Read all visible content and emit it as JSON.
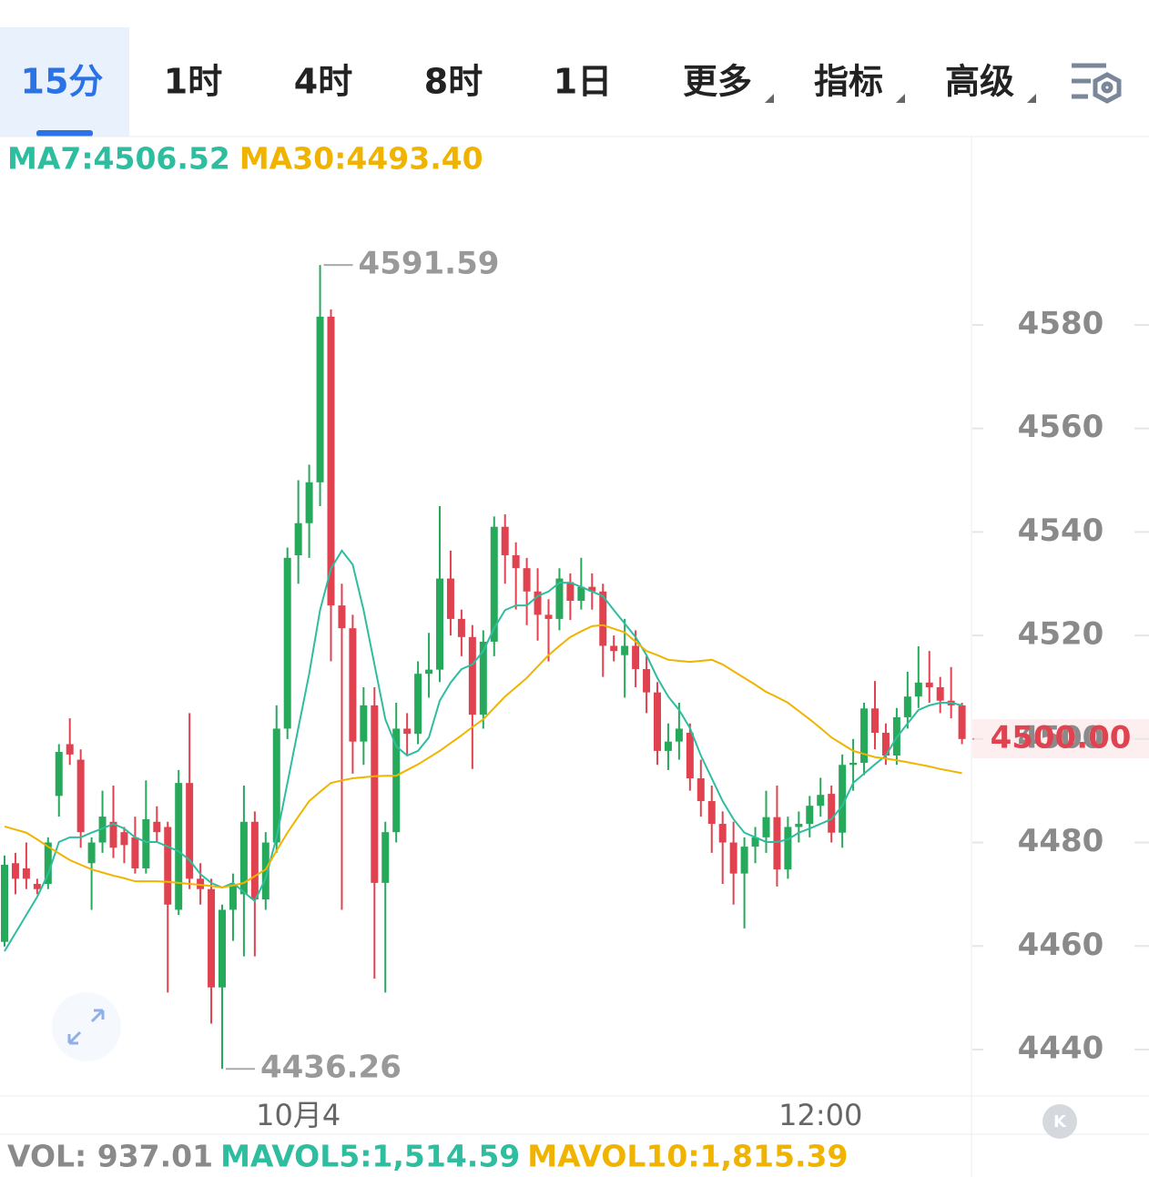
{
  "tabs": [
    "15分",
    "1时",
    "4时",
    "8时",
    "1日",
    "更多",
    "指标",
    "高级"
  ],
  "chart_data": {
    "type": "candlestick",
    "ma_labels": [
      {
        "text": "MA7:4506.52",
        "color": "#2ebd9f"
      },
      {
        "text": "MA30:4493.40",
        "color": "#f0b400"
      }
    ],
    "vol_labels": [
      {
        "text": "VOL: 937.01",
        "color": "#8a8a8a"
      },
      {
        "text": "MAVOL5:1,514.59",
        "color": "#2ebd9f"
      },
      {
        "text": "MAVOL10:1,815.39",
        "color": "#f0b400"
      }
    ],
    "up_color": "#27a95b",
    "down_color": "#e0434f",
    "categories": [
      null,
      null,
      null,
      null,
      null,
      null,
      null,
      null,
      null,
      null,
      null,
      null,
      null,
      null,
      null,
      null,
      null,
      null,
      null,
      null,
      null,
      null,
      null,
      null,
      null,
      null,
      null,
      "10月4",
      null,
      null,
      null,
      null,
      null,
      null,
      null,
      null,
      null,
      null,
      null,
      null,
      null,
      null,
      null,
      null,
      null,
      null,
      null,
      null,
      null,
      null,
      null,
      null,
      null,
      null,
      null,
      null,
      null,
      null,
      null,
      null,
      null,
      null,
      null,
      null,
      null,
      null,
      null,
      null,
      null,
      null,
      null,
      null,
      null,
      null,
      null,
      "12:00",
      null,
      null,
      null,
      null,
      null,
      null,
      null,
      null,
      null,
      null,
      null,
      null,
      null
    ],
    "open": [
      4460.8,
      4476,
      4475,
      4472,
      4472,
      4489,
      4499,
      4496,
      4476,
      4480,
      4484,
      4482,
      4481,
      4475,
      4484,
      4483,
      4467,
      4491.5,
      4473,
      4471,
      4452,
      4467,
      4470,
      4484,
      4469,
      4480,
      4502,
      4535.5,
      4541.7,
      4549.6,
      4581.6,
      4525.8,
      4521.4,
      4499.5,
      4506.5,
      4472.2,
      4482,
      4502,
      4501,
      4512.6,
      4513.4,
      4531,
      4523.2,
      4519.7,
      4504.7,
      4518.8,
      4541,
      4535.5,
      4533,
      4528.5,
      4524,
      4523.2,
      4530.3,
      4526.7,
      4529.4,
      4528.5,
      4518,
      4516.2,
      4518,
      4513.5,
      4509,
      4497.7,
      4499.5,
      4501.2,
      4492.4,
      4488,
      4483.6,
      4480,
      4474,
      4479.2,
      4481,
      4484.9,
      4474.8,
      4483,
      4483.6,
      4487.1,
      4489.4,
      4481.9,
      4495,
      4495.4,
      4505.9,
      4501.2,
      4496.8,
      4504.2,
      4508.2,
      4510.9,
      4510,
      4507.4,
      4506.5
    ],
    "high": [
      4477.5,
      4478,
      4480,
      4473,
      4481,
      4499,
      4504,
      4498,
      4481,
      4490,
      4491,
      4483,
      4485,
      4492,
      4487,
      4484,
      4494,
      4505,
      4476,
      4473,
      4468,
      4474,
      4491,
      4486,
      4482,
      4506.5,
      4537,
      4550,
      4553,
      4591.59,
      4583,
      4530,
      4524,
      4510,
      4510,
      4484,
      4507,
      4505,
      4515,
      4520.5,
      4545,
      4536.4,
      4525,
      4522,
      4521,
      4543,
      4543.4,
      4538,
      4535,
      4533,
      4527,
      4533,
      4532,
      4535,
      4532,
      4530,
      4520,
      4523.2,
      4521,
      4516,
      4511,
      4503,
      4507,
      4503,
      4496,
      4491,
      4486,
      4484,
      4481,
      4483,
      4490,
      4491,
      4485,
      4486,
      4489,
      4492.5,
      4491,
      4497,
      4500,
      4507,
      4511.2,
      4503,
      4506,
      4513,
      4517.9,
      4517,
      4512,
      4513.9,
      4507
    ],
    "low": [
      4459.9,
      4470,
      4471,
      4470,
      4471,
      4485,
      4495,
      4479,
      4467,
      4478,
      4477,
      4476,
      4474,
      4474,
      4480,
      4451,
      4466,
      4471,
      4468,
      4445,
      4436.26,
      4461,
      4458,
      4458,
      4467,
      4478,
      4500,
      4530,
      4535,
      4545,
      4515,
      4467,
      4493.3,
      4495,
      4453.7,
      4451,
      4480,
      4497,
      4499,
      4508,
      4511,
      4520,
      4516,
      4494.2,
      4502,
      4516,
      4530,
      4525,
      4522,
      4519,
      4515,
      4521,
      4523,
      4525,
      4525,
      4512,
      4515,
      4508,
      4510,
      4505,
      4495,
      4494,
      4496,
      4490,
      4485,
      4478,
      4472,
      4468,
      4463.4,
      4476,
      4478,
      4471.5,
      4473,
      4480,
      4481,
      4485,
      4480,
      4479,
      4490,
      4493,
      4498,
      4495,
      4495,
      4502,
      4506,
      4507,
      4505,
      4504,
      4499
    ],
    "close": [
      4475.7,
      4473,
      4473,
      4471,
      4480,
      4497.5,
      4497,
      4482,
      4480,
      4485,
      4479,
      4479.5,
      4475,
      4484.5,
      4482,
      4468,
      4491.5,
      4473,
      4471,
      4452,
      4467,
      4472,
      4484,
      4469,
      4480,
      4502,
      4535,
      4541.7,
      4549.6,
      4581.6,
      4525.8,
      4521.4,
      4499.5,
      4506.5,
      4472.2,
      4482,
      4502,
      4501,
      4512.6,
      4513.4,
      4531,
      4523.2,
      4519.7,
      4504.7,
      4518.8,
      4541,
      4535.5,
      4533,
      4528.5,
      4524,
      4523.2,
      4531,
      4526.7,
      4529.4,
      4528.5,
      4518,
      4517,
      4518,
      4513.5,
      4509,
      4497.7,
      4499.5,
      4502,
      4492.4,
      4488,
      4483.6,
      4480,
      4474,
      4479.2,
      4481,
      4484.9,
      4474.8,
      4483,
      4483.6,
      4487.1,
      4489.2,
      4481.9,
      4495,
      4495.4,
      4505.9,
      4501.2,
      4496.8,
      4504.2,
      4508.2,
      4510.9,
      4510,
      4507.4,
      4506.5,
      4500
    ],
    "lines": [
      {
        "color": "#2ebd9f",
        "values": [
          4459.0,
          4462.5,
          4466.0,
          4469.5,
          4473.9,
          4480.1,
          4481.0,
          4481.0,
          4481.9,
          4482.7,
          4483.6,
          4482.7,
          4481.0,
          4480.1,
          4480.1,
          4479.2,
          4478.3,
          4476.6,
          4473.9,
          4472.2,
          4471.3,
          4472.2,
          4470.4,
          4468.7,
          4473.1,
          4481.0,
          4491.5,
          4502.1,
          4512.6,
          4524.9,
          4532.9,
          4536.4,
          4533.7,
          4524.9,
          4514.4,
          4503.8,
          4498.6,
          4496.8,
          4497.7,
          4500.3,
          4507.4,
          4510.9,
          4513.5,
          4514.4,
          4517.0,
          4521.4,
          4524.9,
          4525.8,
          4525.8,
          4527.6,
          4528.5,
          4530.2,
          4530.2,
          4529.4,
          4528.5,
          4527.6,
          4524.9,
          4522.3,
          4519.7,
          4516.2,
          4511.8,
          4508.2,
          4505.6,
          4502.1,
          4496.8,
          4492.4,
          4488.0,
          4484.5,
          4481.9,
          4481.0,
          4480.1,
          4480.1,
          4480.6,
          4481.9,
          4482.7,
          4483.6,
          4484.5,
          4487.1,
          4491.5,
          4493.3,
          4495.1,
          4496.8,
          4500.3,
          4503.0,
          4505.6,
          4506.5,
          4507.0,
          4507.0,
          4506.5
        ]
      },
      {
        "color": "#f0b400",
        "values": [
          4483.1,
          4482.5,
          4481.9,
          4480.6,
          4479.2,
          4477.9,
          4476.6,
          4475.7,
          4474.8,
          4474.2,
          4473.6,
          4473.1,
          4472.5,
          4472.5,
          4472.5,
          4472.4,
          4472.2,
          4472.0,
          4471.8,
          4471.6,
          4471.3,
          4471.7,
          4472.2,
          4473.5,
          4474.8,
          4478.4,
          4481.9,
          4485.0,
          4488.0,
          4489.8,
          4491.5,
          4492.0,
          4492.4,
          4492.6,
          4492.8,
          4492.9,
          4492.9,
          4494.0,
          4495.1,
          4496.4,
          4497.7,
          4499.2,
          4500.7,
          4502.3,
          4503.8,
          4506.0,
          4508.2,
          4510.0,
          4511.8,
          4514.0,
          4516.2,
          4518.0,
          4519.7,
          4520.8,
          4521.8,
          4522.0,
          4521.3,
          4520.6,
          4518.8,
          4517.0,
          4516.2,
          4515.3,
          4515.1,
          4514.9,
          4515.1,
          4515.3,
          4514.4,
          4513.1,
          4511.8,
          4510.5,
          4509.1,
          4508.1,
          4507.0,
          4505.4,
          4503.8,
          4502.1,
          4500.3,
          4499.0,
          4497.7,
          4497.1,
          4496.5,
          4496.2,
          4495.9,
          4495.5,
          4495.1,
          4494.7,
          4494.2,
          4493.8,
          4493.4
        ]
      }
    ],
    "annotations": [
      4591.59,
      4436.26
    ],
    "last_price": {
      "value": 4500,
      "label": "4500.00"
    },
    "ylim": [
      4431.2,
      4616.4
    ],
    "yticks": [
      4440,
      4460,
      4480,
      4500,
      4520,
      4540,
      4560,
      4580
    ]
  }
}
